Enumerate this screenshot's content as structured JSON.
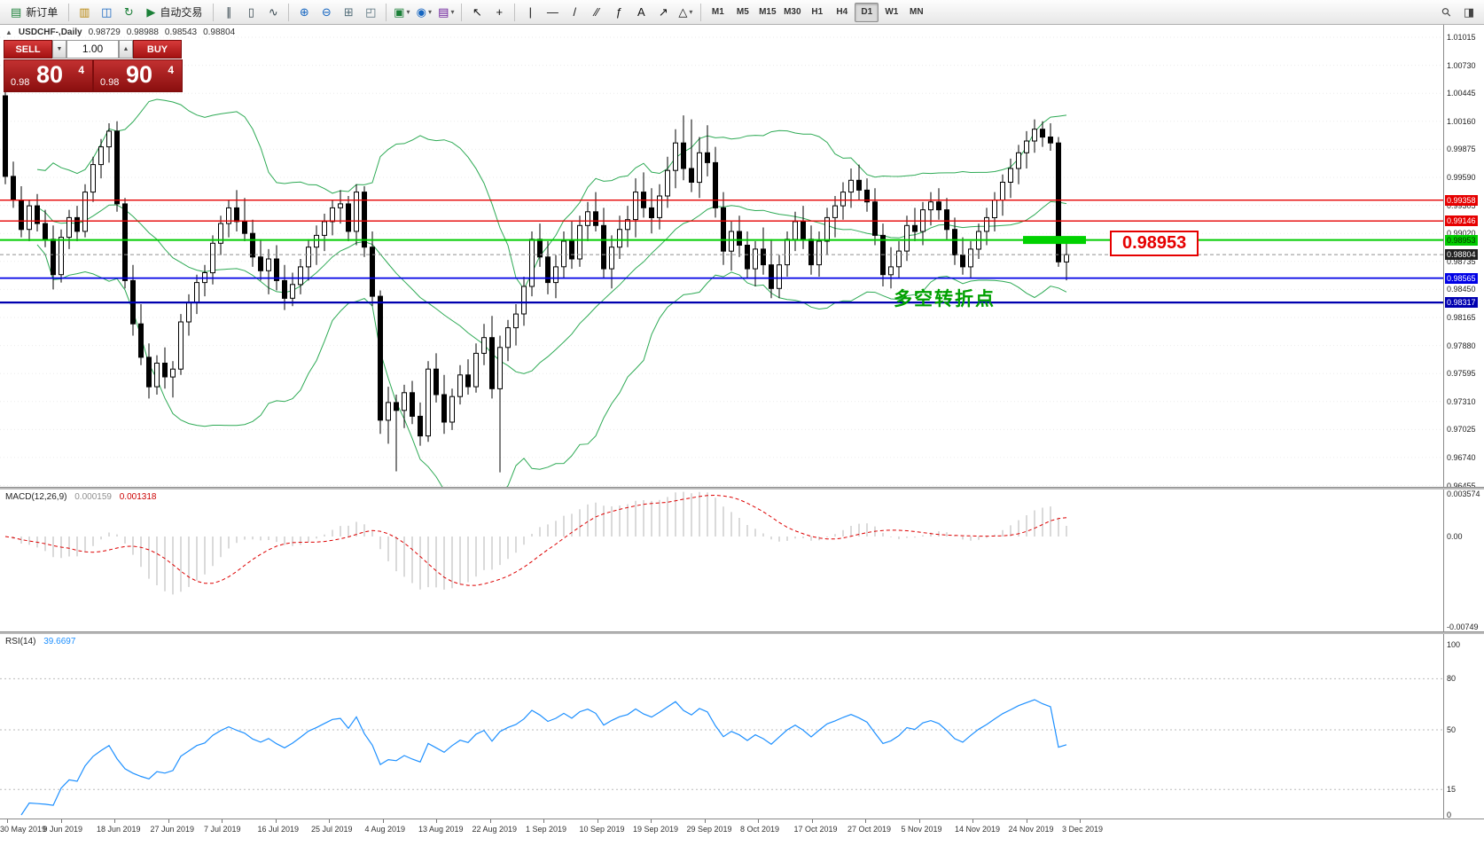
{
  "toolbar": {
    "items": [
      {
        "t": "btn",
        "name": "new-order-button",
        "glyph": "▤",
        "color": "#1a7f37",
        "label": "新订单"
      },
      {
        "t": "sep"
      },
      {
        "t": "icon",
        "name": "charts-window-icon",
        "glyph": "▥",
        "color": "#b8860b"
      },
      {
        "t": "icon",
        "name": "market-watch-icon",
        "glyph": "◫",
        "color": "#1565c0"
      },
      {
        "t": "icon",
        "name": "refresh-icon",
        "glyph": "↻",
        "color": "#1a7f37"
      },
      {
        "t": "btn",
        "name": "autotrading-button",
        "glyph": "▶",
        "color": "#1a7f37",
        "label": "自动交易"
      },
      {
        "t": "sep"
      },
      {
        "t": "icon",
        "name": "bar-chart-icon",
        "glyph": "∥",
        "color": "#37474f"
      },
      {
        "t": "icon",
        "name": "candlestick-chart-icon",
        "glyph": "▯",
        "color": "#37474f"
      },
      {
        "t": "icon",
        "name": "line-chart-icon",
        "glyph": "∿",
        "color": "#37474f"
      },
      {
        "t": "sep"
      },
      {
        "t": "icon",
        "name": "zoom-in-icon",
        "glyph": "⊕",
        "color": "#1565c0"
      },
      {
        "t": "icon",
        "name": "zoom-out-icon",
        "glyph": "⊖",
        "color": "#1565c0"
      },
      {
        "t": "icon",
        "name": "grid-icon",
        "glyph": "⊞",
        "color": "#546e7a"
      },
      {
        "t": "icon",
        "name": "tile-windows-icon",
        "glyph": "◰",
        "color": "#546e7a"
      },
      {
        "t": "sep"
      },
      {
        "t": "dropdown",
        "name": "new-chart-dropdown",
        "glyph": "▣",
        "color": "#1a7f37"
      },
      {
        "t": "dropdown",
        "name": "profiles-dropdown",
        "glyph": "◉",
        "color": "#1565c0"
      },
      {
        "t": "dropdown",
        "name": "indicators-dropdown",
        "glyph": "▤",
        "color": "#6a1b9a"
      },
      {
        "t": "sep"
      },
      {
        "t": "icon",
        "name": "cursor-icon",
        "glyph": "↖",
        "color": "#111"
      },
      {
        "t": "icon",
        "name": "crosshair-icon",
        "glyph": "+",
        "color": "#111"
      },
      {
        "t": "sep"
      },
      {
        "t": "icon",
        "name": "vertical-line-icon",
        "glyph": "|",
        "color": "#111"
      },
      {
        "t": "icon",
        "name": "horizontal-line-icon",
        "glyph": "—",
        "color": "#111"
      },
      {
        "t": "icon",
        "name": "trendline-icon",
        "glyph": "/",
        "color": "#111"
      },
      {
        "t": "icon",
        "name": "channel-icon",
        "glyph": "⁄⁄",
        "color": "#111"
      },
      {
        "t": "icon",
        "name": "fibonacci-icon",
        "glyph": "ƒ",
        "color": "#111"
      },
      {
        "t": "icon",
        "name": "text-icon",
        "glyph": "A",
        "color": "#111"
      },
      {
        "t": "icon",
        "name": "arrow-tool-icon",
        "glyph": "↗",
        "color": "#111"
      },
      {
        "t": "dropdown",
        "name": "shapes-dropdown",
        "glyph": "△",
        "color": "#111"
      },
      {
        "t": "sep"
      },
      {
        "t": "tf",
        "label": "M1"
      },
      {
        "t": "tf",
        "label": "M5"
      },
      {
        "t": "tf",
        "label": "M15"
      },
      {
        "t": "tf",
        "label": "M30"
      },
      {
        "t": "tf",
        "label": "H1"
      },
      {
        "t": "tf",
        "label": "H4"
      },
      {
        "t": "tf",
        "label": "D1",
        "active": true
      },
      {
        "t": "tf",
        "label": "W1"
      },
      {
        "t": "tf",
        "label": "MN"
      },
      {
        "t": "spacer"
      },
      {
        "t": "icon",
        "name": "search-icon",
        "glyph": "⚲",
        "color": "#444",
        "rot": true
      },
      {
        "t": "icon",
        "name": "new-window-icon",
        "glyph": "◨",
        "color": "#444"
      }
    ]
  },
  "symbol_bar": {
    "collapse_icon": "▲",
    "title": "USDCHF-,Daily",
    "open": "0.98729",
    "high": "0.98988",
    "low": "0.98543",
    "close": "0.98804"
  },
  "trade_panel": {
    "sell_label": "SELL",
    "buy_label": "BUY",
    "volume": "1.00",
    "down_icon": "▼",
    "up_icon": "▲",
    "bid_prefix": "0.98",
    "bid_big": "80",
    "bid_sup": "4",
    "ask_prefix": "0.98",
    "ask_big": "90",
    "ask_sup": "4"
  },
  "chart": {
    "axis": {
      "max": 1.01015,
      "step": 0.00285,
      "count": 17
    },
    "levels": [
      {
        "price": 0.99358,
        "label": "0.99358",
        "color": "#e60000",
        "width": 1.4
      },
      {
        "price": 0.99146,
        "label": "0.99146",
        "color": "#e60000",
        "width": 1.4
      },
      {
        "price": 0.98953,
        "label": "0.98953",
        "color": "#00cc00",
        "width": 2,
        "text_color": "#063300"
      },
      {
        "price": 0.98565,
        "label": "0.98565",
        "color": "#0000e6",
        "width": 1.8
      },
      {
        "price": 0.98317,
        "label": "0.98317",
        "color": "#0000b0",
        "width": 2.2
      }
    ],
    "bid_marker": {
      "price": 0.98804,
      "label": "0.98804",
      "bg": "#1f1f1f"
    },
    "highlight": {
      "price": 0.98953,
      "start": 128,
      "end": 135,
      "color": "#00d200"
    },
    "annotations": {
      "price_label": "0.98953",
      "note": "多空转折点"
    },
    "colors": {
      "bands": "#2eaa55",
      "bull": "#ffffff",
      "bear": "#000000",
      "grid": "#ebebeb"
    },
    "candles": [
      [
        1.0042,
        1.0048,
        0.9952,
        0.996
      ],
      [
        0.996,
        0.9975,
        0.9928,
        0.9936
      ],
      [
        0.9936,
        0.995,
        0.9898,
        0.9906
      ],
      [
        0.9906,
        0.9936,
        0.9894,
        0.993
      ],
      [
        0.993,
        0.9942,
        0.9904,
        0.9912
      ],
      [
        0.9912,
        0.9926,
        0.9888,
        0.9896
      ],
      [
        0.9896,
        0.991,
        0.9845,
        0.986
      ],
      [
        0.986,
        0.9906,
        0.9852,
        0.9898
      ],
      [
        0.9898,
        0.9926,
        0.9886,
        0.9918
      ],
      [
        0.9918,
        0.993,
        0.9894,
        0.9904
      ],
      [
        0.9904,
        0.9952,
        0.9898,
        0.9944
      ],
      [
        0.9944,
        0.998,
        0.9934,
        0.9972
      ],
      [
        0.9972,
        0.9998,
        0.9958,
        0.999
      ],
      [
        0.999,
        1.0014,
        0.9974,
        1.0006
      ],
      [
        1.0006,
        1.0016,
        0.9924,
        0.9932
      ],
      [
        0.9932,
        0.9938,
        0.9846,
        0.9854
      ],
      [
        0.9854,
        0.987,
        0.9798,
        0.981
      ],
      [
        0.981,
        0.983,
        0.9768,
        0.9776
      ],
      [
        0.9776,
        0.979,
        0.9734,
        0.9746
      ],
      [
        0.9746,
        0.9778,
        0.9738,
        0.977
      ],
      [
        0.977,
        0.9786,
        0.9744,
        0.9756
      ],
      [
        0.9756,
        0.9772,
        0.9735,
        0.9764
      ],
      [
        0.9764,
        0.982,
        0.9758,
        0.9812
      ],
      [
        0.9812,
        0.984,
        0.9798,
        0.9832
      ],
      [
        0.9832,
        0.986,
        0.982,
        0.9852
      ],
      [
        0.9852,
        0.987,
        0.9838,
        0.9862
      ],
      [
        0.9862,
        0.99,
        0.985,
        0.9892
      ],
      [
        0.9892,
        0.992,
        0.988,
        0.9912
      ],
      [
        0.9912,
        0.9936,
        0.9898,
        0.9928
      ],
      [
        0.9928,
        0.9946,
        0.9904,
        0.9914
      ],
      [
        0.9914,
        0.9938,
        0.9894,
        0.9902
      ],
      [
        0.9902,
        0.9916,
        0.9868,
        0.9878
      ],
      [
        0.9878,
        0.9896,
        0.9854,
        0.9864
      ],
      [
        0.9864,
        0.9886,
        0.984,
        0.9876
      ],
      [
        0.9876,
        0.989,
        0.9844,
        0.9854
      ],
      [
        0.9854,
        0.987,
        0.9824,
        0.9836
      ],
      [
        0.9836,
        0.9862,
        0.9828,
        0.985
      ],
      [
        0.985,
        0.9876,
        0.984,
        0.9868
      ],
      [
        0.9868,
        0.9896,
        0.9854,
        0.9888
      ],
      [
        0.9888,
        0.991,
        0.987,
        0.99
      ],
      [
        0.99,
        0.9922,
        0.9884,
        0.9914
      ],
      [
        0.9914,
        0.9936,
        0.99,
        0.9928
      ],
      [
        0.9928,
        0.9946,
        0.9912,
        0.9932
      ],
      [
        0.9932,
        0.994,
        0.9894,
        0.9904
      ],
      [
        0.9904,
        0.9952,
        0.989,
        0.9944
      ],
      [
        0.9944,
        0.995,
        0.9878,
        0.9888
      ],
      [
        0.9888,
        0.9904,
        0.9828,
        0.9838
      ],
      [
        0.9838,
        0.9844,
        0.9698,
        0.9712
      ],
      [
        0.9712,
        0.9746,
        0.9688,
        0.973
      ],
      [
        0.973,
        0.9738,
        0.966,
        0.9722
      ],
      [
        0.9722,
        0.9748,
        0.9704,
        0.974
      ],
      [
        0.974,
        0.9752,
        0.9708,
        0.9716
      ],
      [
        0.9716,
        0.973,
        0.9686,
        0.9696
      ],
      [
        0.9696,
        0.9772,
        0.969,
        0.9764
      ],
      [
        0.9764,
        0.978,
        0.973,
        0.9738
      ],
      [
        0.9738,
        0.9758,
        0.9698,
        0.971
      ],
      [
        0.971,
        0.9744,
        0.9702,
        0.9736
      ],
      [
        0.9736,
        0.9768,
        0.9728,
        0.9758
      ],
      [
        0.9758,
        0.9774,
        0.9738,
        0.9746
      ],
      [
        0.9746,
        0.979,
        0.974,
        0.978
      ],
      [
        0.978,
        0.981,
        0.9768,
        0.9796
      ],
      [
        0.9796,
        0.9818,
        0.9734,
        0.9744
      ],
      [
        0.9744,
        0.9798,
        0.9659,
        0.9786
      ],
      [
        0.9786,
        0.9814,
        0.9772,
        0.9806
      ],
      [
        0.9806,
        0.983,
        0.9788,
        0.982
      ],
      [
        0.982,
        0.9858,
        0.9808,
        0.9848
      ],
      [
        0.9848,
        0.9904,
        0.9838,
        0.9896
      ],
      [
        0.9896,
        0.9912,
        0.9868,
        0.9878
      ],
      [
        0.9878,
        0.9894,
        0.984,
        0.9852
      ],
      [
        0.9852,
        0.988,
        0.9836,
        0.9868
      ],
      [
        0.9868,
        0.9904,
        0.9856,
        0.9894
      ],
      [
        0.9894,
        0.9914,
        0.9866,
        0.9876
      ],
      [
        0.9876,
        0.992,
        0.9868,
        0.991
      ],
      [
        0.991,
        0.9934,
        0.9894,
        0.9924
      ],
      [
        0.9924,
        0.9944,
        0.9904,
        0.991
      ],
      [
        0.991,
        0.9928,
        0.9856,
        0.9866
      ],
      [
        0.9866,
        0.99,
        0.9846,
        0.9888
      ],
      [
        0.9888,
        0.992,
        0.9876,
        0.9906
      ],
      [
        0.9906,
        0.993,
        0.9888,
        0.9916
      ],
      [
        0.9916,
        0.9958,
        0.9898,
        0.9944
      ],
      [
        0.9944,
        0.9964,
        0.9918,
        0.9928
      ],
      [
        0.9928,
        0.9948,
        0.9902,
        0.9918
      ],
      [
        0.9918,
        0.9952,
        0.9906,
        0.994
      ],
      [
        0.994,
        0.998,
        0.9928,
        0.9966
      ],
      [
        0.9966,
        1.0008,
        0.9948,
        0.9994
      ],
      [
        0.9994,
        1.0022,
        0.9956,
        0.9968
      ],
      [
        0.9968,
        1.0018,
        0.9944,
        0.9954
      ],
      [
        0.9954,
        1.0,
        0.9938,
        0.9984
      ],
      [
        0.9984,
        1.0012,
        0.996,
        0.9974
      ],
      [
        0.9974,
        0.999,
        0.9918,
        0.9928
      ],
      [
        0.9928,
        0.9944,
        0.987,
        0.9884
      ],
      [
        0.9884,
        0.9914,
        0.9864,
        0.9904
      ],
      [
        0.9904,
        0.992,
        0.9878,
        0.989
      ],
      [
        0.989,
        0.9904,
        0.9856,
        0.9866
      ],
      [
        0.9866,
        0.9894,
        0.9848,
        0.9886
      ],
      [
        0.9886,
        0.9908,
        0.986,
        0.987
      ],
      [
        0.987,
        0.9896,
        0.9836,
        0.9846
      ],
      [
        0.9846,
        0.988,
        0.9836,
        0.987
      ],
      [
        0.987,
        0.9904,
        0.9858,
        0.9896
      ],
      [
        0.9896,
        0.9924,
        0.9884,
        0.9914
      ],
      [
        0.9914,
        0.993,
        0.9886,
        0.9896
      ],
      [
        0.9896,
        0.991,
        0.986,
        0.987
      ],
      [
        0.987,
        0.9904,
        0.9858,
        0.9894
      ],
      [
        0.9894,
        0.9928,
        0.988,
        0.9918
      ],
      [
        0.9918,
        0.994,
        0.9898,
        0.993
      ],
      [
        0.993,
        0.9954,
        0.9916,
        0.9944
      ],
      [
        0.9944,
        0.9968,
        0.9928,
        0.9956
      ],
      [
        0.9956,
        0.9972,
        0.9936,
        0.9946
      ],
      [
        0.9946,
        0.9958,
        0.9924,
        0.9934
      ],
      [
        0.9934,
        0.9948,
        0.989,
        0.99
      ],
      [
        0.99,
        0.9912,
        0.9848,
        0.986
      ],
      [
        0.986,
        0.9888,
        0.9846,
        0.9868
      ],
      [
        0.9868,
        0.9894,
        0.9856,
        0.9884
      ],
      [
        0.9884,
        0.992,
        0.9874,
        0.991
      ],
      [
        0.991,
        0.9928,
        0.9894,
        0.9904
      ],
      [
        0.9904,
        0.9934,
        0.989,
        0.9926
      ],
      [
        0.9926,
        0.9944,
        0.991,
        0.9934
      ],
      [
        0.9934,
        0.9948,
        0.9916,
        0.9926
      ],
      [
        0.9926,
        0.9938,
        0.9896,
        0.9906
      ],
      [
        0.9906,
        0.9918,
        0.987,
        0.988
      ],
      [
        0.988,
        0.9898,
        0.986,
        0.9868
      ],
      [
        0.9868,
        0.9894,
        0.9856,
        0.9886
      ],
      [
        0.9886,
        0.9912,
        0.9876,
        0.9904
      ],
      [
        0.9904,
        0.9928,
        0.989,
        0.9918
      ],
      [
        0.9918,
        0.9944,
        0.9904,
        0.9936
      ],
      [
        0.9936,
        0.9962,
        0.992,
        0.9954
      ],
      [
        0.9954,
        0.9978,
        0.9938,
        0.9968
      ],
      [
        0.9968,
        0.9992,
        0.9952,
        0.9984
      ],
      [
        0.9984,
        1.0006,
        0.9968,
        0.9996
      ],
      [
        0.9996,
        1.0018,
        0.9984,
        1.0008
      ],
      [
        1.0008,
        1.0016,
        0.999,
        1.0
      ],
      [
        1.0,
        1.0014,
        0.9986,
        0.9994
      ],
      [
        0.9994,
        1.0,
        0.9868,
        0.9873
      ],
      [
        0.98729,
        0.98988,
        0.98543,
        0.98804
      ]
    ]
  },
  "macd": {
    "label": "MACD(12,26,9)",
    "value": "0.000159",
    "signal_value": "0.001318",
    "axis": [
      "0.003574",
      "0.00",
      "-0.00749"
    ],
    "colors": {
      "hist": "#b5b5b5",
      "signal": "#dd0000"
    }
  },
  "rsi": {
    "label": "RSI(14)",
    "value": "39.6697",
    "axis": [
      "100",
      "80",
      "50",
      "15",
      "0"
    ],
    "levels": [
      80,
      50,
      15
    ],
    "color": "#1e90ff"
  },
  "dates": [
    "30 May 2019",
    "9 Jun 2019",
    "18 Jun 2019",
    "27 Jun 2019",
    "7 Jul 2019",
    "16 Jul 2019",
    "25 Jul 2019",
    "4 Aug 2019",
    "13 Aug 2019",
    "22 Aug 2019",
    "1 Sep 2019",
    "10 Sep 2019",
    "19 Sep 2019",
    "29 Sep 2019",
    "8 Oct 2019",
    "17 Oct 2019",
    "27 Oct 2019",
    "5 Nov 2019",
    "14 Nov 2019",
    "24 Nov 2019",
    "3 Dec 2019"
  ]
}
